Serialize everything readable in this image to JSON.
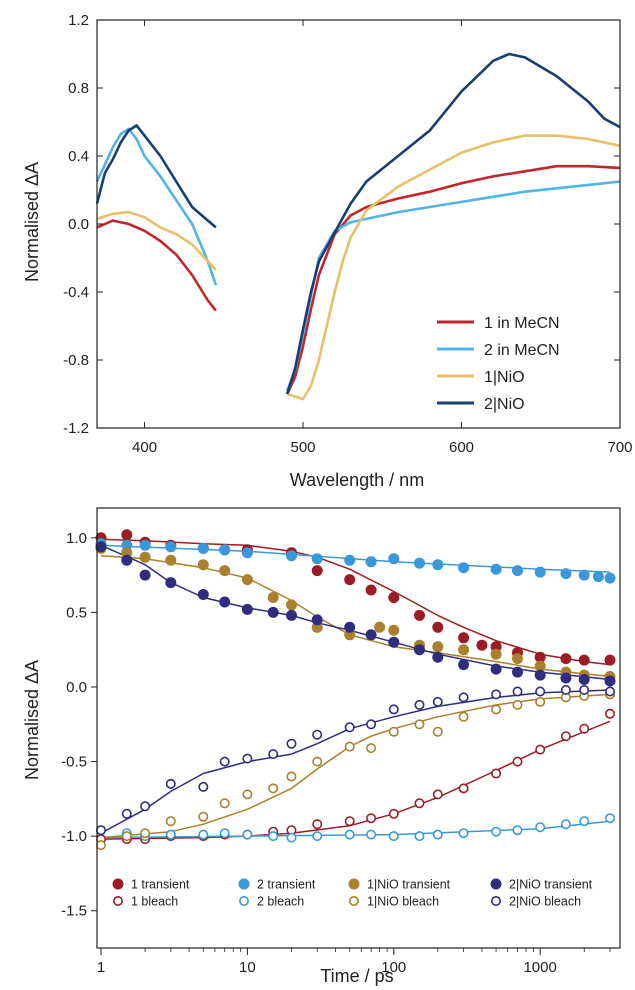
{
  "chart_data": [
    {
      "type": "line",
      "xlabel": "Wavelength / nm",
      "ylabel": "Normalised ΔA",
      "xlim": [
        370,
        700
      ],
      "ylim": [
        -1.2,
        1.2
      ],
      "xticks": [
        400,
        500,
        600,
        700
      ],
      "yticks": [
        -1.2,
        -0.8,
        -0.4,
        0.0,
        0.4,
        0.8,
        1.2
      ],
      "ytick_labels": [
        "-1.2",
        "-0.8",
        "-0.4",
        "0.0",
        "0.4",
        "0.8",
        "1.2"
      ],
      "legend_position": "bottom-right",
      "series": [
        {
          "name": "1 in MeCN",
          "color": "#c0272d",
          "segments": [
            {
              "x": [
                370,
                380,
                390,
                400,
                410,
                420,
                430,
                440,
                445
              ],
              "y": [
                -0.02,
                0.02,
                0.0,
                -0.04,
                -0.1,
                -0.18,
                -0.3,
                -0.45,
                -0.51
              ]
            },
            {
              "x": [
                490,
                495,
                500,
                505,
                510,
                520,
                530,
                540,
                560,
                580,
                600,
                620,
                640,
                660,
                680,
                700
              ],
              "y": [
                -1.0,
                -0.9,
                -0.72,
                -0.5,
                -0.3,
                -0.06,
                0.05,
                0.1,
                0.15,
                0.19,
                0.24,
                0.28,
                0.31,
                0.34,
                0.34,
                0.33
              ]
            }
          ]
        },
        {
          "name": "2 in MeCN",
          "color": "#4fb4e6",
          "segments": [
            {
              "x": [
                370,
                375,
                380,
                385,
                390,
                395,
                400,
                410,
                420,
                430,
                440,
                445
              ],
              "y": [
                0.25,
                0.35,
                0.45,
                0.53,
                0.56,
                0.5,
                0.4,
                0.28,
                0.14,
                0.0,
                -0.22,
                -0.36
              ]
            },
            {
              "x": [
                490,
                495,
                500,
                505,
                510,
                520,
                530,
                540,
                560,
                580,
                600,
                620,
                640,
                660,
                680,
                700
              ],
              "y": [
                -0.98,
                -0.86,
                -0.65,
                -0.42,
                -0.2,
                -0.04,
                0.01,
                0.03,
                0.07,
                0.1,
                0.13,
                0.16,
                0.19,
                0.21,
                0.23,
                0.25
              ]
            }
          ]
        },
        {
          "name": "1|NiO",
          "color": "#e8c06a",
          "segments": [
            {
              "x": [
                370,
                380,
                390,
                400,
                410,
                420,
                430,
                440,
                445
              ],
              "y": [
                0.03,
                0.06,
                0.07,
                0.04,
                -0.02,
                -0.06,
                -0.12,
                -0.22,
                -0.27
              ]
            },
            {
              "x": [
                490,
                500,
                505,
                510,
                515,
                520,
                525,
                530,
                540,
                560,
                580,
                600,
                620,
                640,
                660,
                680,
                700
              ],
              "y": [
                -1.0,
                -1.03,
                -0.95,
                -0.8,
                -0.6,
                -0.4,
                -0.22,
                -0.08,
                0.08,
                0.22,
                0.32,
                0.42,
                0.48,
                0.52,
                0.52,
                0.5,
                0.46
              ]
            }
          ]
        },
        {
          "name": "2|NiO",
          "color": "#1b3d6e",
          "segments": [
            {
              "x": [
                370,
                375,
                380,
                385,
                390,
                395,
                400,
                410,
                420,
                430,
                440,
                445
              ],
              "y": [
                0.12,
                0.3,
                0.38,
                0.48,
                0.55,
                0.58,
                0.52,
                0.4,
                0.25,
                0.1,
                0.02,
                -0.02
              ]
            },
            {
              "x": [
                490,
                495,
                500,
                505,
                510,
                520,
                530,
                540,
                560,
                580,
                600,
                620,
                630,
                640,
                660,
                680,
                690,
                700
              ],
              "y": [
                -1.0,
                -0.85,
                -0.62,
                -0.4,
                -0.22,
                -0.05,
                0.12,
                0.25,
                0.4,
                0.55,
                0.78,
                0.96,
                1.0,
                0.98,
                0.87,
                0.72,
                0.62,
                0.57
              ]
            }
          ]
        }
      ]
    },
    {
      "type": "scatter",
      "xlabel": "Time / ps",
      "ylabel": "Normalised ΔA",
      "xscale": "log",
      "xlim": [
        1,
        3000
      ],
      "ylim": [
        -1.75,
        1.2
      ],
      "xticks": [
        1,
        10,
        100,
        1000
      ],
      "xtick_labels": [
        "1",
        "10",
        "100",
        "1000"
      ],
      "yticks": [
        -1.5,
        -1.0,
        -0.5,
        0.0,
        0.5,
        1.0
      ],
      "ytick_labels": [
        "-1.5",
        "-1.0",
        "-0.5",
        "0.0",
        "0.5",
        "1.0"
      ],
      "legend_position": "bottom",
      "legend_items": [
        {
          "name": "1 transient",
          "color": "#9b1c24",
          "filled": true
        },
        {
          "name": "2 transient",
          "color": "#3a98d8",
          "filled": true
        },
        {
          "name": "1|NiO transient",
          "color": "#a8802e",
          "filled": true
        },
        {
          "name": "2|NiO transient",
          "color": "#2f2d7c",
          "filled": true
        },
        {
          "name": "1 bleach",
          "color": "#9b1c24",
          "filled": false
        },
        {
          "name": "2 bleach",
          "color": "#3a98d8",
          "filled": false
        },
        {
          "name": "1|NiO bleach",
          "color": "#a8802e",
          "filled": false
        },
        {
          "name": "2|NiO bleach",
          "color": "#2f2d7c",
          "filled": false
        }
      ],
      "series": [
        {
          "name": "1 transient",
          "color": "#9b1c24",
          "filled": true,
          "x": [
            1,
            1.5,
            2,
            3,
            5,
            7,
            10,
            20,
            30,
            50,
            70,
            100,
            150,
            200,
            300,
            400,
            500,
            700,
            1000,
            1500,
            2000,
            3000
          ],
          "y": [
            1.0,
            1.02,
            0.97,
            0.95,
            0.93,
            0.92,
            0.92,
            0.9,
            0.78,
            0.72,
            0.65,
            0.6,
            0.48,
            0.4,
            0.33,
            0.28,
            0.27,
            0.23,
            0.2,
            0.19,
            0.18,
            0.18
          ],
          "fit_x": [
            1,
            2,
            5,
            10,
            20,
            30,
            50,
            100,
            200,
            300,
            500,
            1000,
            2000,
            3000
          ],
          "fit_y": [
            0.99,
            0.98,
            0.96,
            0.95,
            0.91,
            0.87,
            0.79,
            0.64,
            0.48,
            0.4,
            0.31,
            0.22,
            0.17,
            0.15
          ]
        },
        {
          "name": "2 transient",
          "color": "#3a98d8",
          "filled": true,
          "x": [
            1,
            1.5,
            2,
            3,
            5,
            7,
            10,
            20,
            30,
            50,
            70,
            100,
            150,
            200,
            300,
            500,
            700,
            1000,
            1500,
            2000,
            2500,
            3000
          ],
          "y": [
            0.96,
            0.95,
            0.95,
            0.94,
            0.93,
            0.92,
            0.9,
            0.88,
            0.86,
            0.85,
            0.84,
            0.86,
            0.83,
            0.82,
            0.8,
            0.79,
            0.78,
            0.77,
            0.76,
            0.75,
            0.74,
            0.73
          ],
          "fit_x": [
            1,
            10,
            100,
            1000,
            3000
          ],
          "fit_y": [
            0.95,
            0.91,
            0.84,
            0.79,
            0.77
          ]
        },
        {
          "name": "1|NiO transient",
          "color": "#a8802e",
          "filled": true,
          "x": [
            1,
            1.5,
            2,
            3,
            5,
            7,
            10,
            15,
            20,
            30,
            50,
            80,
            100,
            150,
            200,
            300,
            500,
            700,
            1000,
            1500,
            2000,
            3000
          ],
          "y": [
            0.93,
            0.9,
            0.87,
            0.85,
            0.82,
            0.78,
            0.72,
            0.6,
            0.55,
            0.4,
            0.35,
            0.4,
            0.38,
            0.28,
            0.27,
            0.25,
            0.22,
            0.19,
            0.14,
            0.1,
            0.08,
            0.07
          ],
          "fit_x": [
            1,
            2,
            5,
            10,
            20,
            30,
            50,
            100,
            200,
            500,
            1000,
            3000
          ],
          "fit_y": [
            0.88,
            0.86,
            0.8,
            0.73,
            0.58,
            0.47,
            0.35,
            0.27,
            0.23,
            0.17,
            0.12,
            0.07
          ]
        },
        {
          "name": "2|NiO transient",
          "color": "#2f2d7c",
          "filled": true,
          "x": [
            1,
            1.5,
            2,
            3,
            5,
            7,
            10,
            15,
            20,
            30,
            50,
            70,
            100,
            150,
            200,
            300,
            500,
            700,
            1000,
            1500,
            2000,
            3000
          ],
          "y": [
            0.94,
            0.85,
            0.75,
            0.7,
            0.62,
            0.57,
            0.52,
            0.5,
            0.48,
            0.45,
            0.4,
            0.35,
            0.3,
            0.25,
            0.2,
            0.15,
            0.12,
            0.1,
            0.08,
            0.06,
            0.05,
            0.04
          ],
          "fit_x": [
            1,
            2,
            3,
            5,
            10,
            20,
            30,
            50,
            100,
            200,
            500,
            1000,
            3000
          ],
          "fit_y": [
            0.95,
            0.82,
            0.7,
            0.6,
            0.53,
            0.48,
            0.43,
            0.38,
            0.3,
            0.22,
            0.14,
            0.1,
            0.05
          ]
        },
        {
          "name": "1 bleach",
          "color": "#9b1c24",
          "filled": false,
          "x": [
            1,
            1.5,
            2,
            3,
            5,
            7,
            10,
            15,
            20,
            30,
            50,
            70,
            100,
            150,
            200,
            300,
            500,
            700,
            1000,
            1500,
            2000,
            3000
          ],
          "y": [
            -1.02,
            -1.02,
            -1.02,
            -1.0,
            -1.0,
            -0.99,
            -0.99,
            -0.97,
            -0.96,
            -0.92,
            -0.9,
            -0.88,
            -0.85,
            -0.78,
            -0.72,
            -0.68,
            -0.58,
            -0.5,
            -0.42,
            -0.33,
            -0.28,
            -0.18
          ],
          "fit_x": [
            1,
            5,
            10,
            20,
            50,
            100,
            200,
            500,
            1000,
            2000,
            3000
          ],
          "fit_y": [
            -1.02,
            -1.01,
            -1.0,
            -0.98,
            -0.93,
            -0.85,
            -0.74,
            -0.56,
            -0.42,
            -0.3,
            -0.23
          ]
        },
        {
          "name": "2 bleach",
          "color": "#3a98d8",
          "filled": false,
          "x": [
            1,
            1.5,
            2,
            3,
            5,
            7,
            10,
            15,
            20,
            30,
            50,
            70,
            100,
            150,
            200,
            300,
            500,
            700,
            1000,
            1500,
            2000,
            3000
          ],
          "y": [
            -0.96,
            -0.98,
            -1.0,
            -0.99,
            -0.99,
            -0.98,
            -0.99,
            -1.0,
            -1.01,
            -1.0,
            -0.99,
            -0.99,
            -1.0,
            -1.0,
            -0.99,
            -0.98,
            -0.97,
            -0.96,
            -0.94,
            -0.92,
            -0.9,
            -0.88
          ],
          "fit_x": [
            1,
            10,
            100,
            1000,
            3000
          ],
          "fit_y": [
            -1.01,
            -1.0,
            -0.99,
            -0.95,
            -0.9
          ]
        },
        {
          "name": "1|NiO bleach",
          "color": "#a8802e",
          "filled": false,
          "x": [
            1,
            1.5,
            2,
            3,
            5,
            7,
            10,
            15,
            20,
            30,
            50,
            70,
            100,
            150,
            200,
            300,
            500,
            700,
            1000,
            1500,
            2000,
            3000
          ],
          "y": [
            -1.06,
            -1.0,
            -0.98,
            -0.9,
            -0.87,
            -0.78,
            -0.72,
            -0.68,
            -0.6,
            -0.5,
            -0.4,
            -0.41,
            -0.3,
            -0.25,
            -0.3,
            -0.2,
            -0.15,
            -0.12,
            -0.1,
            -0.07,
            -0.06,
            -0.05
          ],
          "fit_x": [
            1,
            3,
            5,
            10,
            20,
            30,
            50,
            70,
            100,
            200,
            500,
            1000,
            3000
          ],
          "fit_y": [
            -1.01,
            -0.97,
            -0.92,
            -0.82,
            -0.68,
            -0.55,
            -0.4,
            -0.33,
            -0.28,
            -0.2,
            -0.12,
            -0.08,
            -0.05
          ]
        },
        {
          "name": "2|NiO bleach",
          "color": "#2f2d7c",
          "filled": false,
          "x": [
            1,
            1.5,
            2,
            3,
            5,
            7,
            10,
            15,
            20,
            30,
            50,
            70,
            100,
            150,
            200,
            300,
            500,
            700,
            1000,
            1500,
            2000,
            3000
          ],
          "y": [
            -0.96,
            -0.85,
            -0.8,
            -0.65,
            -0.67,
            -0.5,
            -0.48,
            -0.45,
            -0.38,
            -0.32,
            -0.27,
            -0.25,
            -0.15,
            -0.12,
            -0.1,
            -0.07,
            -0.05,
            -0.03,
            -0.03,
            -0.02,
            -0.02,
            -0.03
          ],
          "fit_x": [
            1,
            2,
            3,
            5,
            10,
            20,
            30,
            50,
            100,
            200,
            500,
            1000,
            3000
          ],
          "fit_y": [
            -0.98,
            -0.82,
            -0.7,
            -0.58,
            -0.5,
            -0.45,
            -0.38,
            -0.28,
            -0.2,
            -0.13,
            -0.07,
            -0.04,
            -0.02
          ]
        }
      ]
    }
  ]
}
